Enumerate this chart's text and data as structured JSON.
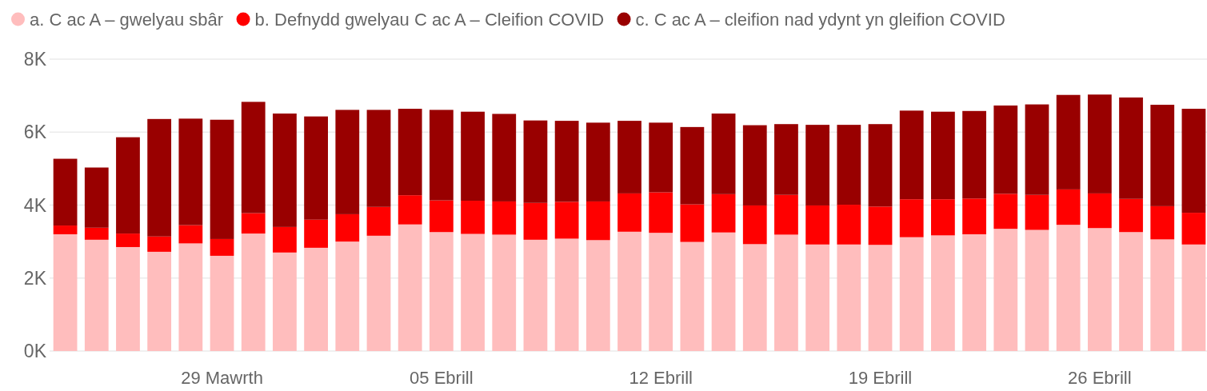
{
  "chart_data": {
    "type": "bar",
    "stacked": true,
    "categories": [
      null,
      null,
      null,
      null,
      null,
      "29 Mawrth",
      null,
      null,
      null,
      null,
      null,
      null,
      "05 Ebrill",
      null,
      null,
      null,
      null,
      null,
      null,
      "12 Ebrill",
      null,
      null,
      null,
      null,
      null,
      null,
      "19 Ebrill",
      null,
      null,
      null,
      null,
      null,
      null,
      "26 Ebrill",
      null,
      null,
      null
    ],
    "series": [
      {
        "name": "a. C ac A – gwelyau sbâr",
        "color": "#ffbdbd",
        "values": [
          3200,
          3050,
          2850,
          2720,
          2950,
          2610,
          3220,
          2700,
          2830,
          3000,
          3160,
          3470,
          3260,
          3210,
          3190,
          3050,
          3080,
          3040,
          3270,
          3240,
          2990,
          3250,
          2930,
          3190,
          2920,
          2920,
          2910,
          3120,
          3170,
          3200,
          3350,
          3320,
          3460,
          3370,
          3260,
          3060,
          2920
        ]
      },
      {
        "name": "b. Defnydd gwelyau C ac A – Cleifion COVID",
        "color": "#ff0000",
        "values": [
          240,
          330,
          370,
          420,
          500,
          460,
          560,
          700,
          770,
          750,
          790,
          800,
          870,
          910,
          910,
          1010,
          1010,
          1060,
          1050,
          1110,
          1030,
          1050,
          1060,
          1090,
          1070,
          1090,
          1050,
          1040,
          990,
          980,
          960,
          960,
          970,
          950,
          910,
          910,
          870
        ]
      },
      {
        "name": "c. C ac A – cleifion nad ydynt yn gleifion COVID",
        "color": "#990000",
        "values": [
          1830,
          1650,
          2640,
          3220,
          2920,
          3270,
          3050,
          3110,
          2830,
          2860,
          2660,
          2370,
          2480,
          2440,
          2400,
          2260,
          2220,
          2160,
          1990,
          1910,
          2120,
          2210,
          2200,
          1940,
          2210,
          2190,
          2260,
          2430,
          2400,
          2400,
          2420,
          2480,
          2590,
          2710,
          2780,
          2780,
          2850
        ]
      }
    ],
    "ylim": [
      0,
      8000
    ],
    "yticks": [
      {
        "value": 0,
        "label": "0K"
      },
      {
        "value": 2000,
        "label": "2K"
      },
      {
        "value": 4000,
        "label": "4K"
      },
      {
        "value": 6000,
        "label": "6K"
      },
      {
        "value": 8000,
        "label": "8K"
      }
    ],
    "grid": "y",
    "legend": "top left"
  }
}
